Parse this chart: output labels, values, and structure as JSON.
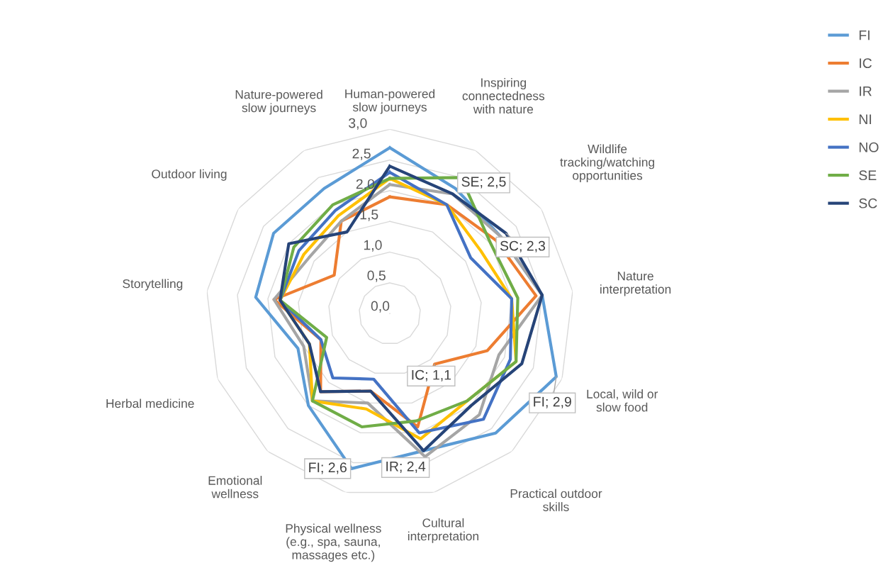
{
  "chart_data": {
    "type": "radar",
    "categories": [
      "Human-powered slow journeys",
      "Inspiring connectedness with nature",
      "Wildlife tracking/watching opportunities",
      "Nature interpretation",
      "Local, wild or slow food",
      "Practical outdoor skills",
      "Cultural interpretation",
      "Physical wellness (e.g., spa, sauna, massages etc.)",
      "Emotional wellness",
      "Herbal medicine",
      "Storytelling",
      "Outdoor living",
      "Nature-powered slow journeys"
    ],
    "series": [
      {
        "name": "FI",
        "color": "#5b9bd5",
        "values": [
          2.7,
          2.3,
          2.2,
          2.5,
          2.9,
          2.6,
          2.3,
          2.6,
          2.0,
          1.6,
          2.2,
          2.3,
          2.3
        ],
        "value_labels": [
          null,
          null,
          null,
          null,
          "FI; 2,9",
          null,
          null,
          "FI; 2,6",
          null,
          null,
          null,
          null,
          null
        ]
      },
      {
        "name": "IC",
        "color": "#ed7d31",
        "values": [
          1.9,
          2.0,
          2.1,
          2.4,
          1.7,
          1.1,
          1.9,
          1.3,
          1.7,
          1.2,
          1.9,
          1.1,
          1.7
        ],
        "value_labels": [
          null,
          null,
          null,
          null,
          null,
          "IC; 1,1",
          null,
          null,
          null,
          null,
          null,
          null,
          null
        ]
      },
      {
        "name": "IR",
        "color": "#a5a5a5",
        "values": [
          2.1,
          2.2,
          2.2,
          2.5,
          1.9,
          2.2,
          2.4,
          1.5,
          1.9,
          1.5,
          1.9,
          1.6,
          1.7
        ],
        "value_labels": [
          null,
          null,
          null,
          null,
          null,
          null,
          "IR; 2,4",
          null,
          null,
          null,
          null,
          null,
          null
        ]
      },
      {
        "name": "NI",
        "color": "#ffc000",
        "values": [
          2.2,
          2.0,
          1.8,
          2.0,
          2.2,
          1.9,
          2.1,
          1.6,
          1.9,
          1.4,
          1.8,
          1.7,
          1.8
        ]
      },
      {
        "name": "NO",
        "color": "#4472c4",
        "values": [
          2.3,
          2.0,
          1.6,
          2.0,
          2.1,
          2.3,
          2.0,
          1.1,
          1.4,
          1.2,
          1.8,
          1.8,
          1.9
        ]
      },
      {
        "name": "SE",
        "color": "#70ad47",
        "values": [
          2.2,
          2.5,
          2.0,
          2.1,
          2.2,
          1.9,
          1.8,
          1.9,
          1.9,
          1.1,
          1.8,
          1.9,
          2.0
        ],
        "value_labels": [
          null,
          "SE; 2,5",
          null,
          null,
          null,
          null,
          null,
          null,
          null,
          null,
          null,
          null,
          null
        ]
      },
      {
        "name": "SC",
        "color": "#264478",
        "values": [
          2.4,
          2.2,
          2.3,
          2.5,
          2.3,
          2.0,
          2.3,
          1.3,
          1.7,
          1.4,
          1.8,
          2.0,
          1.5
        ],
        "value_labels": [
          null,
          null,
          "SC; 2,3",
          null,
          null,
          null,
          null,
          null,
          null,
          null,
          null,
          null,
          null
        ]
      }
    ],
    "ylim": [
      0,
      3
    ],
    "yticks": [
      {
        "value": 0,
        "label": "0,0"
      },
      {
        "value": 0.5,
        "label": "0,5"
      },
      {
        "value": 1,
        "label": "1,0"
      },
      {
        "value": 1.5,
        "label": "1,5"
      },
      {
        "value": 2,
        "label": "2,0"
      },
      {
        "value": 2.5,
        "label": "2,5"
      },
      {
        "value": 3,
        "label": "3,0"
      }
    ],
    "grid": true,
    "legend": "right"
  }
}
